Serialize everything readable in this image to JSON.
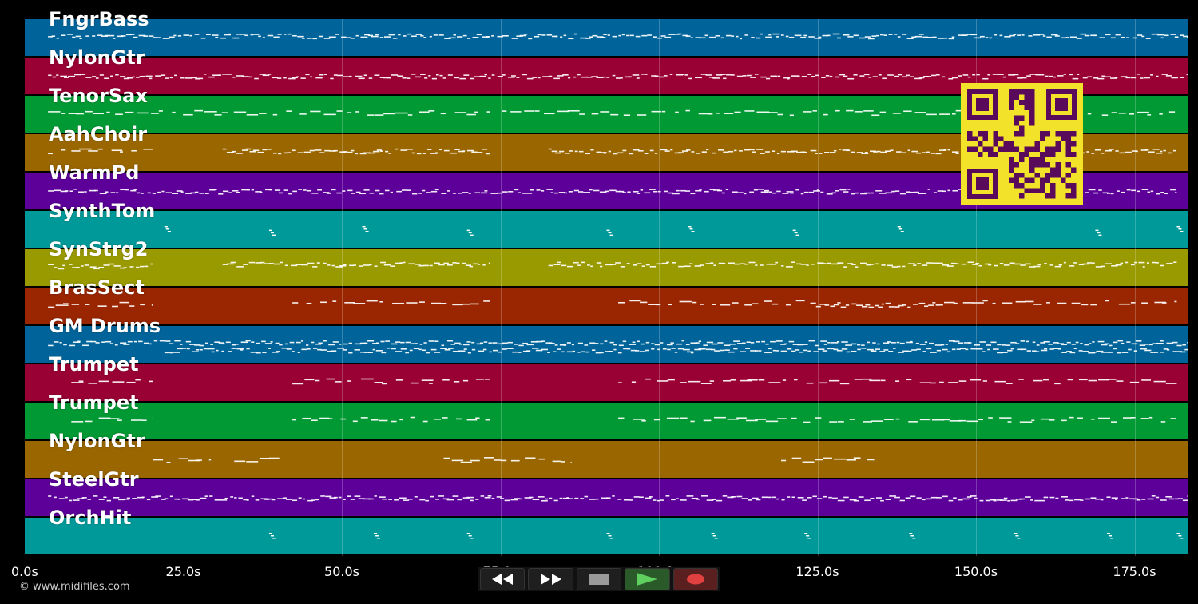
{
  "tracks": [
    {
      "name": "FngrBass",
      "color": "#00649a",
      "notes": [
        [
          0.02,
          1.0,
          0.45,
          "dense"
        ]
      ]
    },
    {
      "name": "NylonGtr",
      "color": "#990033",
      "notes": [
        [
          0.02,
          1.0,
          0.5,
          "dense"
        ]
      ]
    },
    {
      "name": "TenorSax",
      "color": "#009933",
      "notes": [
        [
          0.02,
          0.4,
          0.45,
          "sparse"
        ],
        [
          0.41,
          0.8,
          0.45,
          "sparse"
        ],
        [
          0.8,
          0.99,
          0.45,
          "sparse"
        ]
      ]
    },
    {
      "name": "AahChoir",
      "color": "#996600",
      "notes": [
        [
          0.02,
          0.11,
          0.45,
          "sparse"
        ],
        [
          0.17,
          0.4,
          0.45,
          "dense"
        ],
        [
          0.45,
          0.99,
          0.45,
          "dense"
        ]
      ]
    },
    {
      "name": "WarmPd",
      "color": "#5c0099",
      "notes": [
        [
          0.02,
          0.99,
          0.5,
          "dense"
        ]
      ]
    },
    {
      "name": "SynthTom",
      "color": "#009999",
      "notes": [
        [
          0.12,
          0.13,
          0.5,
          "dot"
        ],
        [
          0.21,
          0.22,
          0.6,
          "dot"
        ],
        [
          0.29,
          0.3,
          0.5,
          "dot"
        ],
        [
          0.38,
          0.4,
          0.6,
          "dot"
        ],
        [
          0.5,
          0.51,
          0.6,
          "dot"
        ],
        [
          0.57,
          0.58,
          0.5,
          "dot"
        ],
        [
          0.66,
          0.67,
          0.6,
          "dot"
        ],
        [
          0.75,
          0.76,
          0.5,
          "dot"
        ],
        [
          0.92,
          0.93,
          0.6,
          "dot"
        ],
        [
          0.99,
          1.0,
          0.5,
          "dot"
        ]
      ]
    },
    {
      "name": "SynStrg2",
      "color": "#999900",
      "notes": [
        [
          0.02,
          0.11,
          0.45,
          "dense"
        ],
        [
          0.17,
          0.4,
          0.4,
          "dense"
        ],
        [
          0.45,
          0.99,
          0.4,
          "dense"
        ]
      ]
    },
    {
      "name": "BrasSect",
      "color": "#992600",
      "notes": [
        [
          0.02,
          0.11,
          0.45,
          "sparse"
        ],
        [
          0.23,
          0.4,
          0.4,
          "sparse"
        ],
        [
          0.51,
          0.68,
          0.4,
          "sparse"
        ],
        [
          0.68,
          0.79,
          0.45,
          "dense"
        ],
        [
          0.79,
          0.99,
          0.4,
          "sparse"
        ]
      ]
    },
    {
      "name": "GM Drums",
      "color": "#00649a",
      "notes": [
        [
          0.02,
          1.0,
          0.45,
          "dense"
        ],
        [
          0.12,
          1.0,
          0.65,
          "dense"
        ]
      ]
    },
    {
      "name": "Trumpet",
      "color": "#990033",
      "notes": [
        [
          0.04,
          0.11,
          0.45,
          "sparse"
        ],
        [
          0.23,
          0.4,
          0.45,
          "sparse"
        ],
        [
          0.51,
          0.99,
          0.45,
          "sparse"
        ]
      ]
    },
    {
      "name": "Trumpet",
      "color": "#009933",
      "notes": [
        [
          0.04,
          0.11,
          0.45,
          "sparse"
        ],
        [
          0.23,
          0.4,
          0.45,
          "sparse"
        ],
        [
          0.51,
          0.99,
          0.45,
          "sparse"
        ]
      ]
    },
    {
      "name": "NylonGtr",
      "color": "#996600",
      "notes": [
        [
          0.11,
          0.16,
          0.5,
          "sparse"
        ],
        [
          0.18,
          0.22,
          0.5,
          "sparse"
        ],
        [
          0.36,
          0.47,
          0.5,
          "sparse"
        ],
        [
          0.65,
          0.73,
          0.5,
          "sparse"
        ]
      ]
    },
    {
      "name": "SteelGtr",
      "color": "#5c0099",
      "notes": [
        [
          0.02,
          1.0,
          0.5,
          "dense"
        ]
      ]
    },
    {
      "name": "OrchHit",
      "color": "#009999",
      "notes": [
        [
          0.21,
          0.22,
          0.5,
          "dot"
        ],
        [
          0.3,
          0.31,
          0.5,
          "dot"
        ],
        [
          0.38,
          0.39,
          0.5,
          "dot"
        ],
        [
          0.5,
          0.51,
          0.5,
          "dot"
        ],
        [
          0.59,
          0.6,
          0.5,
          "dot"
        ],
        [
          0.67,
          0.69,
          0.5,
          "dot"
        ],
        [
          0.76,
          0.77,
          0.5,
          "dot"
        ],
        [
          0.85,
          0.86,
          0.5,
          "dot"
        ],
        [
          0.93,
          0.94,
          0.5,
          "dot"
        ],
        [
          0.99,
          1.0,
          0.5,
          "dot"
        ]
      ]
    }
  ],
  "timeline": {
    "duration_s": 183.5,
    "ticks": [
      "0.0s",
      "25.0s",
      "50.0s",
      "75.0s",
      "100.0s",
      "125.0s",
      "150.0s",
      "175.0s"
    ]
  },
  "transport": {
    "rewind_icon": "rewind-icon",
    "forward_icon": "fast-forward-icon",
    "stop_icon": "stop-icon",
    "play_icon": "play-icon",
    "record_icon": "record-icon"
  },
  "copyright": "© www.midifiles.com"
}
